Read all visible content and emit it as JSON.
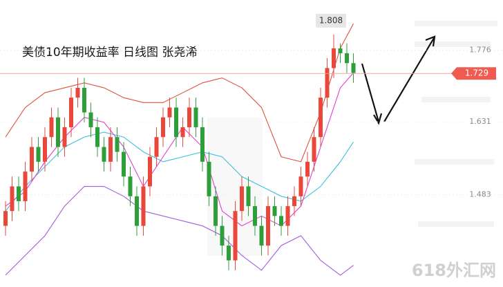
{
  "chart_data": {
    "type": "candlestick",
    "title": "美债10年期收益率  日线图 张尧浠",
    "watermark": "618外汇网",
    "ylim": [
      1.296,
      1.878
    ],
    "yticks": [
      1.483,
      1.631,
      1.776
    ],
    "up_color": "#e8473a",
    "down_color": "#2e9e3a",
    "high_label": "1.808",
    "high_value": 1.808,
    "last_label": "1.729",
    "last_value": 1.729,
    "last_color": "#ef5b50",
    "open": [
      1.42,
      1.45,
      1.5,
      1.47,
      1.53,
      1.58,
      1.55,
      1.6,
      1.64,
      1.58,
      1.62,
      1.68,
      1.7,
      1.65,
      1.62,
      1.58,
      1.55,
      1.6,
      1.57,
      1.52,
      1.48,
      1.42,
      1.5,
      1.56,
      1.6,
      1.64,
      1.66,
      1.6,
      1.62,
      1.66,
      1.62,
      1.55,
      1.48,
      1.42,
      1.38,
      1.35,
      1.45,
      1.5,
      1.46,
      1.42,
      1.38,
      1.46,
      1.44,
      1.42,
      1.46,
      1.48,
      1.52,
      1.55,
      1.6,
      1.68,
      1.74,
      1.78,
      1.77,
      1.75
    ],
    "high": [
      1.47,
      1.52,
      1.52,
      1.55,
      1.6,
      1.6,
      1.62,
      1.66,
      1.66,
      1.64,
      1.7,
      1.72,
      1.72,
      1.67,
      1.64,
      1.6,
      1.62,
      1.62,
      1.59,
      1.54,
      1.5,
      1.52,
      1.58,
      1.62,
      1.66,
      1.68,
      1.68,
      1.64,
      1.68,
      1.68,
      1.64,
      1.57,
      1.5,
      1.44,
      1.4,
      1.47,
      1.52,
      1.52,
      1.48,
      1.44,
      1.48,
      1.48,
      1.46,
      1.48,
      1.5,
      1.54,
      1.57,
      1.62,
      1.7,
      1.76,
      1.808,
      1.79,
      1.79,
      1.77
    ],
    "low": [
      1.4,
      1.43,
      1.45,
      1.45,
      1.51,
      1.53,
      1.53,
      1.58,
      1.56,
      1.56,
      1.6,
      1.66,
      1.63,
      1.6,
      1.56,
      1.53,
      1.53,
      1.55,
      1.5,
      1.46,
      1.4,
      1.4,
      1.48,
      1.54,
      1.58,
      1.62,
      1.58,
      1.58,
      1.6,
      1.6,
      1.53,
      1.46,
      1.4,
      1.36,
      1.33,
      1.33,
      1.43,
      1.44,
      1.4,
      1.36,
      1.36,
      1.42,
      1.4,
      1.4,
      1.44,
      1.46,
      1.5,
      1.53,
      1.58,
      1.66,
      1.72,
      1.75,
      1.73,
      1.71
    ],
    "close": [
      1.45,
      1.5,
      1.47,
      1.53,
      1.58,
      1.55,
      1.6,
      1.64,
      1.58,
      1.62,
      1.68,
      1.7,
      1.65,
      1.62,
      1.58,
      1.55,
      1.6,
      1.57,
      1.52,
      1.48,
      1.42,
      1.5,
      1.56,
      1.6,
      1.64,
      1.66,
      1.6,
      1.62,
      1.66,
      1.62,
      1.55,
      1.48,
      1.42,
      1.38,
      1.35,
      1.45,
      1.5,
      1.46,
      1.42,
      1.38,
      1.46,
      1.44,
      1.42,
      1.46,
      1.48,
      1.52,
      1.55,
      1.6,
      1.68,
      1.74,
      1.78,
      1.77,
      1.75,
      1.73
    ],
    "lines": [
      {
        "color": "#e0503c",
        "x": [
          0,
          3,
          6,
          9,
          12,
          15,
          18,
          21,
          24,
          27,
          30,
          33,
          36,
          39,
          42,
          45,
          48,
          51,
          53
        ],
        "values": [
          1.6,
          1.66,
          1.69,
          1.7,
          1.71,
          1.7,
          1.68,
          1.67,
          1.67,
          1.69,
          1.71,
          1.72,
          1.7,
          1.66,
          1.56,
          1.55,
          1.65,
          1.78,
          1.83
        ]
      },
      {
        "color": "#3cc0dc",
        "x": [
          0,
          3,
          6,
          9,
          12,
          15,
          18,
          21,
          24,
          27,
          30,
          33,
          36,
          39,
          42,
          45,
          48,
          51,
          53
        ],
        "values": [
          1.45,
          1.5,
          1.54,
          1.58,
          1.6,
          1.61,
          1.6,
          1.57,
          1.55,
          1.56,
          1.57,
          1.56,
          1.52,
          1.5,
          1.48,
          1.47,
          1.5,
          1.55,
          1.59
        ]
      },
      {
        "color": "#a35ce0",
        "x": [
          0,
          3,
          6,
          9,
          12,
          15,
          18,
          21,
          24,
          27,
          30,
          33,
          36,
          39,
          42,
          45,
          48,
          51,
          53
        ],
        "values": [
          1.32,
          1.36,
          1.4,
          1.46,
          1.5,
          1.5,
          1.48,
          1.45,
          1.44,
          1.43,
          1.42,
          1.4,
          1.36,
          1.33,
          1.38,
          1.4,
          1.35,
          1.32,
          1.34
        ]
      },
      {
        "color": "#e040d0",
        "x": [
          0,
          3,
          6,
          9,
          12,
          15,
          18,
          21,
          24,
          27,
          30,
          33,
          36,
          39,
          42,
          45,
          48,
          51,
          53
        ],
        "values": [
          1.46,
          1.49,
          1.55,
          1.6,
          1.64,
          1.63,
          1.58,
          1.5,
          1.56,
          1.62,
          1.58,
          1.45,
          1.42,
          1.44,
          1.42,
          1.46,
          1.58,
          1.7,
          1.73
        ]
      }
    ]
  }
}
